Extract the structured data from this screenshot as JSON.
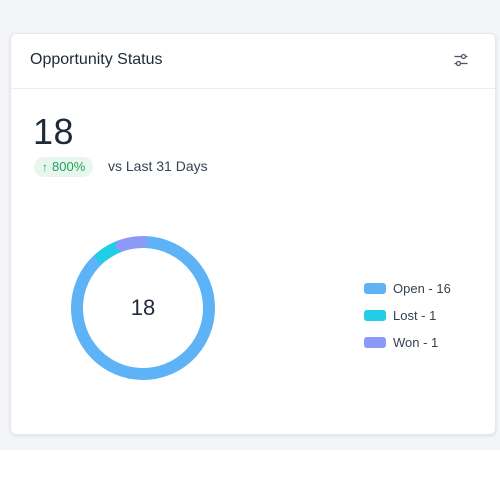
{
  "card": {
    "title": "Opportunity Status",
    "total": "18",
    "change": {
      "arrow": "↑",
      "value": "800%"
    },
    "compare_label": "vs Last 31 Days",
    "filter_icon": "filter-sliders-icon"
  },
  "chart_data": {
    "type": "pie",
    "donut": true,
    "center_label": "18",
    "categories": [
      "Open",
      "Lost",
      "Won"
    ],
    "values": [
      16,
      1,
      1
    ],
    "colors": [
      "#5eb3f7",
      "#22cde6",
      "#8b99f7"
    ]
  },
  "legend": [
    {
      "label": "Open - 16",
      "color": "#5eb3f7"
    },
    {
      "label": "Lost - 1",
      "color": "#22cde6"
    },
    {
      "label": "Won - 1",
      "color": "#8b99f7"
    }
  ]
}
